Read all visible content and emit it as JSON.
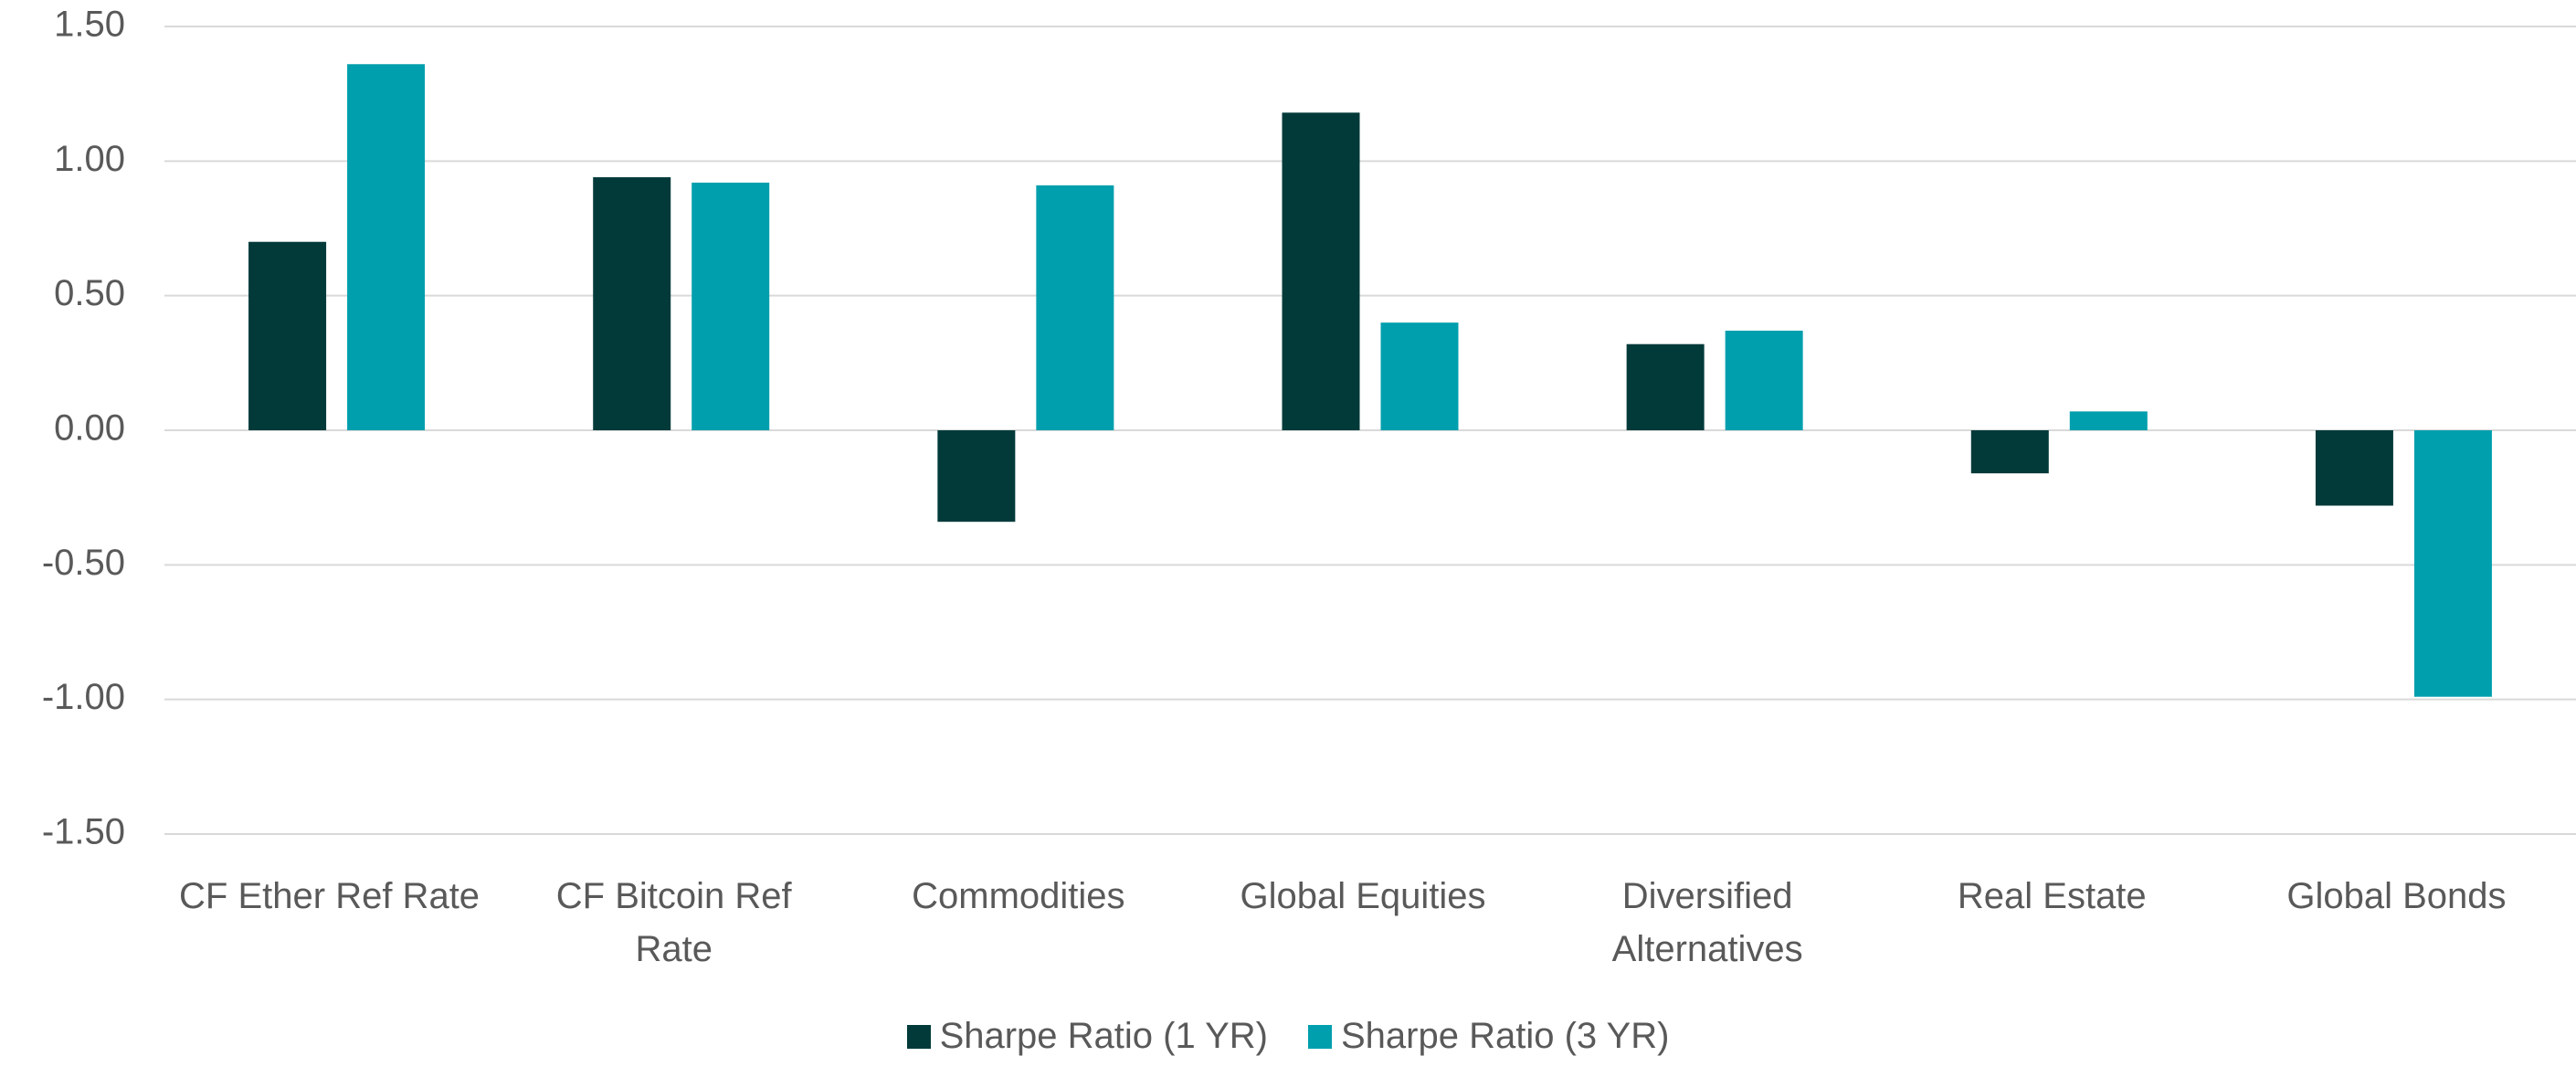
{
  "chart_data": {
    "type": "bar",
    "categories": [
      "CF Ether Ref Rate",
      "CF Bitcoin Ref Rate",
      "Commodities",
      "Global Equities",
      "Diversified Alternatives",
      "Real Estate",
      "Global Bonds"
    ],
    "series": [
      {
        "name": "Sharpe Ratio (1 YR)",
        "color": "#023a3a",
        "values": [
          0.7,
          0.94,
          -0.34,
          1.18,
          0.32,
          -0.16,
          -0.28
        ]
      },
      {
        "name": "Sharpe Ratio (3 YR)",
        "color": "#009fad",
        "values": [
          1.36,
          0.92,
          0.91,
          0.4,
          0.37,
          0.07,
          -0.99
        ]
      }
    ],
    "ylim": [
      -1.5,
      1.5
    ],
    "yticks": [
      {
        "value": -1.5,
        "label": "-1.50"
      },
      {
        "value": -1,
        "label": "-1.00"
      },
      {
        "value": -0.5,
        "label": "-0.50"
      },
      {
        "value": 0,
        "label": "0.00"
      },
      {
        "value": 0.5,
        "label": "0.50"
      },
      {
        "value": 1,
        "label": "1.00"
      },
      {
        "value": 1.5,
        "label": "1.50"
      }
    ],
    "grid": true
  }
}
